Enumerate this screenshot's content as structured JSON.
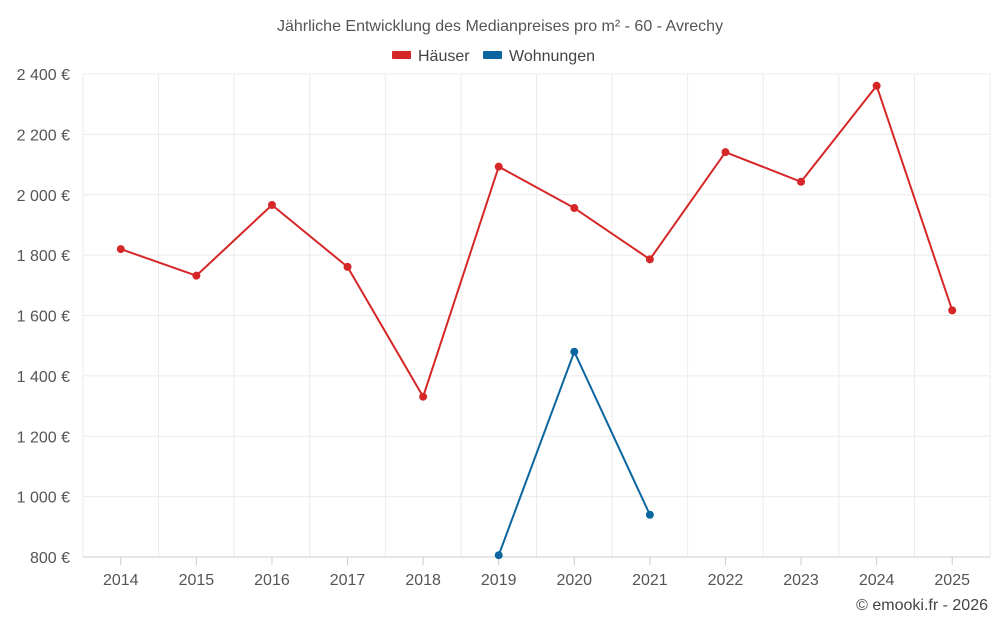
{
  "chart_data": {
    "type": "line",
    "title": "Jährliche Entwicklung des Medianpreises pro m² - 60 - Avrechy",
    "categories": [
      "2014",
      "2015",
      "2016",
      "2017",
      "2018",
      "2019",
      "2020",
      "2021",
      "2022",
      "2023",
      "2024",
      "2025"
    ],
    "ylim": [
      800,
      2400
    ],
    "yticks": [
      800,
      1000,
      1200,
      1400,
      1600,
      1800,
      2000,
      2200,
      2400
    ],
    "ytick_labels": [
      "800 €",
      "1 000 €",
      "1 200 €",
      "1 400 €",
      "1 600 €",
      "1 800 €",
      "2 000 €",
      "2 200 €",
      "2 400 €"
    ],
    "grid": true,
    "legend_position": "top-center",
    "series": [
      {
        "name": "Häuser",
        "color": "#d62728",
        "values": [
          1820,
          1732,
          1966,
          1761,
          1331,
          2093,
          1956,
          1786,
          2141,
          2043,
          2361,
          1617
        ]
      },
      {
        "name": "Wohnungen",
        "color": "#0b66a0",
        "values": [
          null,
          null,
          null,
          null,
          null,
          806,
          1480,
          940,
          null,
          null,
          null,
          null
        ]
      }
    ],
    "credit": "© emooki.fr - 2026"
  }
}
